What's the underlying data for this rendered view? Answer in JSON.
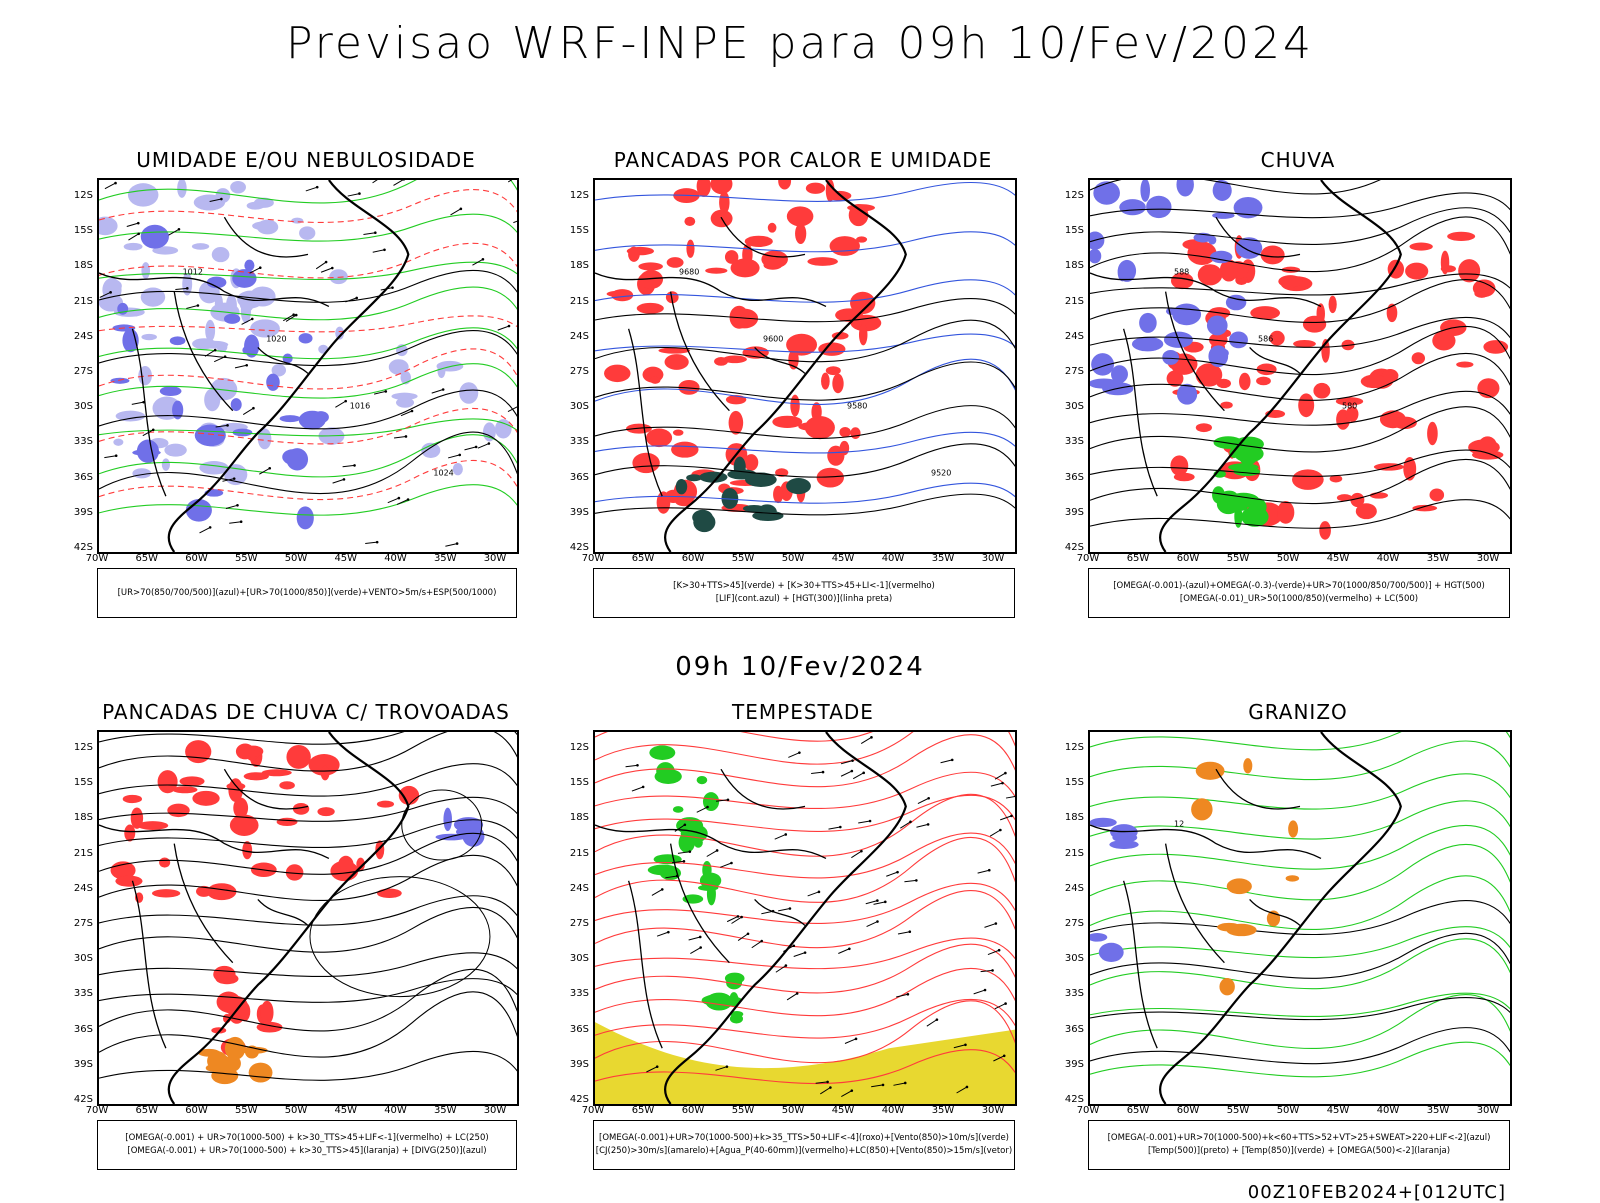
{
  "header": {
    "title": "Previsao WRF-INPE  para 09h 10/Fev/2024",
    "mid_title": "09h 10/Fev/2024",
    "footer_stamp": "00Z10FEB2024+[012UTC]"
  },
  "axes": {
    "lat_labels": [
      "12S",
      "15S",
      "18S",
      "21S",
      "24S",
      "27S",
      "30S",
      "33S",
      "36S",
      "39S",
      "42S"
    ],
    "lon_labels": [
      "70W",
      "65W",
      "60W",
      "55W",
      "50W",
      "45W",
      "40W",
      "35W",
      "30W"
    ]
  },
  "panels": [
    {
      "id": "umidade",
      "title": "UMIDADE E/OU NEBULOSIDADE",
      "legend": [
        "[UR>70(850/700/500)](azul)+[UR>70(1000/850)](verde)+VENTO>5m/s+ESP(500/1000)"
      ],
      "contour_labels": [
        "1012",
        "1020",
        "1016",
        "1024"
      ]
    },
    {
      "id": "pancadas-calor",
      "title": "PANCADAS POR CALOR E UMIDADE",
      "legend": [
        "[K>30+TTS>45](verde) + [K>30+TTS>45+LI<-1](vermelho)",
        "[LIF](cont.azul) + [HGT(300)](linha preta)"
      ],
      "contour_labels": [
        "9680",
        "9600",
        "9580",
        "9520"
      ]
    },
    {
      "id": "chuva",
      "title": "CHUVA",
      "legend": [
        "[OMEGA(-0.001)-(azul)+OMEGA(-0.3)-(verde)+UR>70(1000/850/700/500)] + HGT(500)",
        "[OMEGA(-0.01)_UR>50(1000/850)(vermelho) + LC(500)"
      ],
      "contour_labels": [
        "588",
        "586",
        "580"
      ]
    },
    {
      "id": "trovoadas",
      "title": "PANCADAS DE CHUVA C/ TROVOADAS",
      "legend": [
        "[OMEGA(-0.001) + UR>70(1000-500) + k>30_TTS>45+LIF<-1](vermelho) + LC(250)",
        "[OMEGA(-0.001) + UR>70(1000-500) + k>30_TTS>45](laranja) + [DIVG(250)](azul)"
      ],
      "contour_labels": []
    },
    {
      "id": "tempestade",
      "title": "TEMPESTADE",
      "legend": [
        "[OMEGA(-0.001)+UR>70(1000-500)+k>35_TTS>50+LIF<-4](roxo)+[Vento(850)>10m/s](verde)",
        "[CJ(250)>30m/s](amarelo)+[Agua_P(40-60mm)](vermelho)+LC(850)+[Vento(850)>15m/s](vetor)"
      ],
      "contour_labels": []
    },
    {
      "id": "granizo",
      "title": "GRANIZO",
      "legend": [
        "[OMEGA(-0.001)+UR>70(1000-500)+k<60+TTS>52+VT>25+SWEAT>220+LIF<-2](azul)",
        "[Temp(500)](preto) + [Temp(850)](verde) + [OMEGA(500)<-2](laranja)"
      ],
      "contour_labels": [
        "12"
      ]
    }
  ],
  "colors": {
    "blue_shade": "#7070e8",
    "light_blue": "#b8b8f0",
    "red": "#ff3b3b",
    "green": "#22cc22",
    "dark_green": "#1f4a44",
    "orange": "#ee8822",
    "yellow": "#e8d830",
    "line_blue": "#3355dd"
  }
}
